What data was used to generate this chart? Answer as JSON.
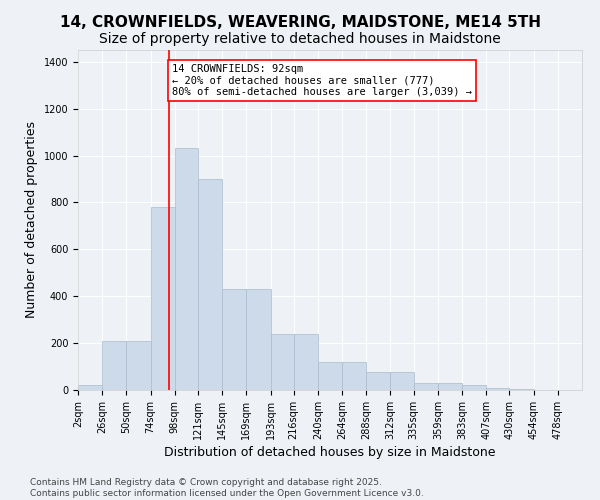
{
  "title": "14, CROWNFIELDS, WEAVERING, MAIDSTONE, ME14 5TH",
  "subtitle": "Size of property relative to detached houses in Maidstone",
  "xlabel": "Distribution of detached houses by size in Maidstone",
  "ylabel": "Number of detached properties",
  "bar_color": "#ccdaea",
  "bar_edge_color": "#aabccc",
  "background_color": "#eef2f7",
  "grid_color": "#ffffff",
  "vline_x": 92,
  "vline_color": "red",
  "annotation_text": "14 CROWNFIELDS: 92sqm\n← 20% of detached houses are smaller (777)\n80% of semi-detached houses are larger (3,039) →",
  "bin_edges": [
    2,
    26,
    50,
    74,
    98,
    121,
    145,
    169,
    193,
    216,
    240,
    264,
    288,
    312,
    335,
    359,
    383,
    407,
    430,
    454,
    478
  ],
  "bar_heights": [
    20,
    210,
    210,
    780,
    1030,
    900,
    430,
    430,
    240,
    240,
    120,
    120,
    75,
    75,
    30,
    30,
    20,
    7,
    5,
    0
  ],
  "categories": [
    "2sqm",
    "26sqm",
    "50sqm",
    "74sqm",
    "98sqm",
    "121sqm",
    "145sqm",
    "169sqm",
    "193sqm",
    "216sqm",
    "240sqm",
    "264sqm",
    "288sqm",
    "312sqm",
    "335sqm",
    "359sqm",
    "383sqm",
    "407sqm",
    "430sqm",
    "454sqm",
    "478sqm"
  ],
  "ylim": [
    0,
    1450
  ],
  "yticks": [
    0,
    200,
    400,
    600,
    800,
    1000,
    1200,
    1400
  ],
  "footer": "Contains HM Land Registry data © Crown copyright and database right 2025.\nContains public sector information licensed under the Open Government Licence v3.0.",
  "title_fontsize": 11,
  "subtitle_fontsize": 10,
  "xlabel_fontsize": 9,
  "ylabel_fontsize": 9,
  "tick_fontsize": 7,
  "footer_fontsize": 6.5
}
